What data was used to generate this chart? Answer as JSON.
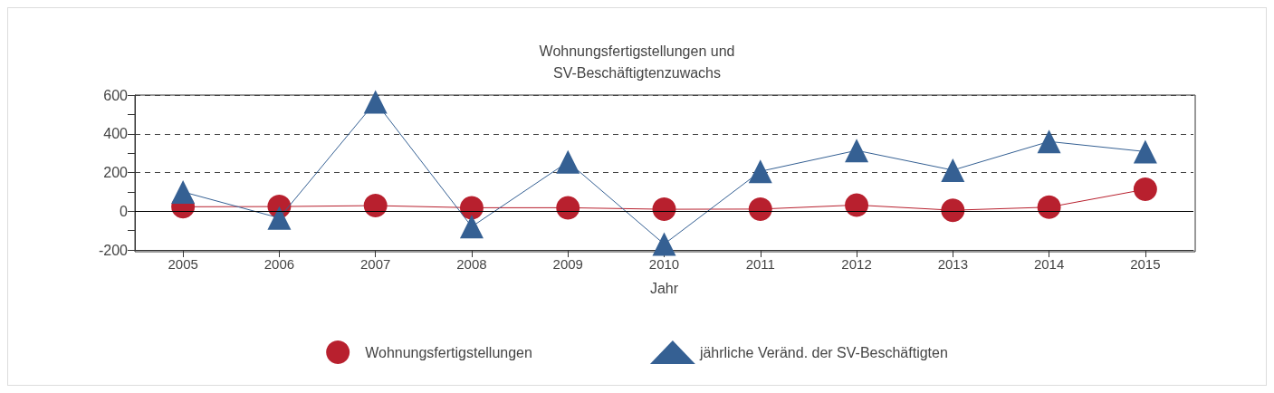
{
  "chart_data": {
    "type": "line",
    "title": "Wohnungsfertigstellungen und\nSV-Beschäftigtenzuwachs",
    "xlabel": "Jahr",
    "categories": [
      "2005",
      "2006",
      "2007",
      "2008",
      "2009",
      "2010",
      "2011",
      "2012",
      "2013",
      "2014",
      "2015"
    ],
    "series": [
      {
        "name": "Wohnungsfertigstellungen",
        "color": "#b8202e",
        "marker": "circle",
        "values": [
          23,
          24,
          29,
          18,
          18,
          10,
          11,
          32,
          5,
          21,
          113
        ]
      },
      {
        "name": "jährliche Veränd. der SV-Beschäftigten",
        "color": "#356093",
        "marker": "triangle",
        "values": [
          100,
          -35,
          565,
          -80,
          255,
          -170,
          206,
          314,
          212,
          360,
          308
        ]
      }
    ],
    "ylim": [
      -200,
      600
    ],
    "yticks": [
      -200,
      {
        "value": -100,
        "label": null
      },
      0,
      {
        "value": 100,
        "label": null
      },
      200,
      {
        "value": 300,
        "label": null
      },
      400,
      {
        "value": 500,
        "label": null
      },
      600
    ],
    "grid": "y",
    "legend": "bottom",
    "ref_lines": [
      {
        "axis": "y",
        "value": 0,
        "color": "#000000",
        "line_style": "solid"
      }
    ]
  }
}
